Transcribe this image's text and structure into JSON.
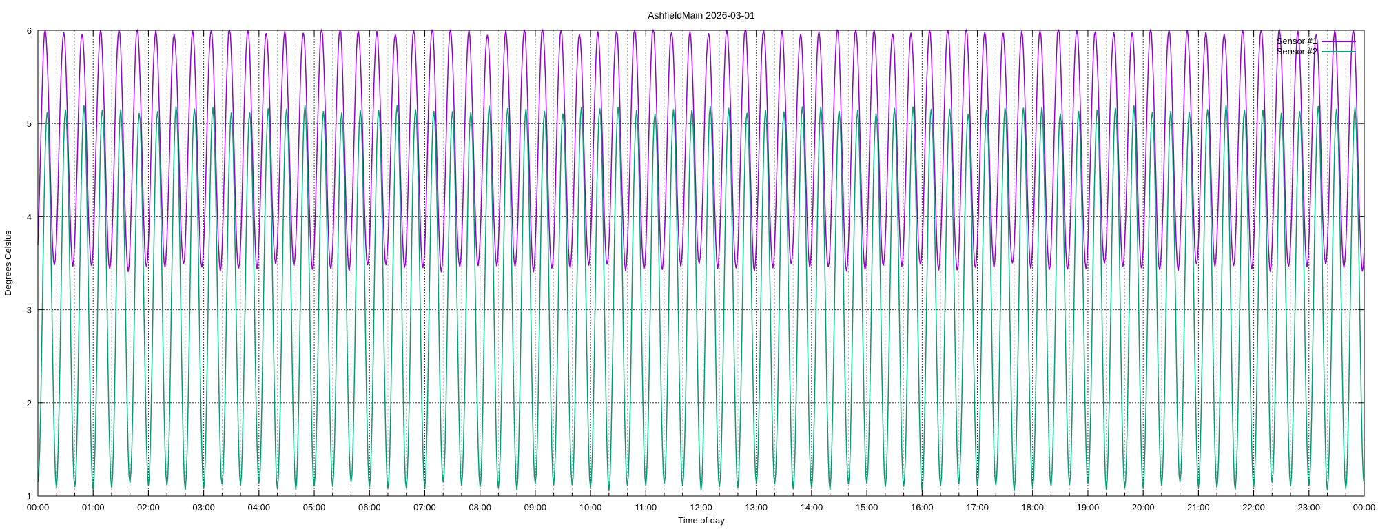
{
  "chart_data": {
    "type": "line",
    "title": "AshfieldMain 2026-03-01",
    "xlabel": "Time of day",
    "ylabel": "Degrees Celsius",
    "xlim": [
      "00:00",
      "24:00"
    ],
    "ylim": [
      1,
      6
    ],
    "x_tick_labels": [
      "00:00",
      "01:00",
      "02:00",
      "03:00",
      "04:00",
      "05:00",
      "06:00",
      "07:00",
      "08:00",
      "09:00",
      "10:00",
      "11:00",
      "12:00",
      "13:00",
      "14:00",
      "15:00",
      "16:00",
      "17:00",
      "18:00",
      "19:00",
      "20:00",
      "21:00",
      "22:00",
      "23:00",
      "00:00"
    ],
    "y_tick_labels": [
      "1",
      "2",
      "3",
      "4",
      "5",
      "6"
    ],
    "grid": true,
    "legend_position": "top-right",
    "cycle_period_minutes": 20,
    "sample_interval_minutes": 1,
    "series": [
      {
        "name": "Sensor #1",
        "color": "#9400d3",
        "min": 3.45,
        "max": 6.0,
        "phase_minutes": 3
      },
      {
        "name": "Sensor #2",
        "color": "#009e73",
        "min": 1.1,
        "max": 5.15,
        "phase_minutes": 5
      }
    ]
  }
}
